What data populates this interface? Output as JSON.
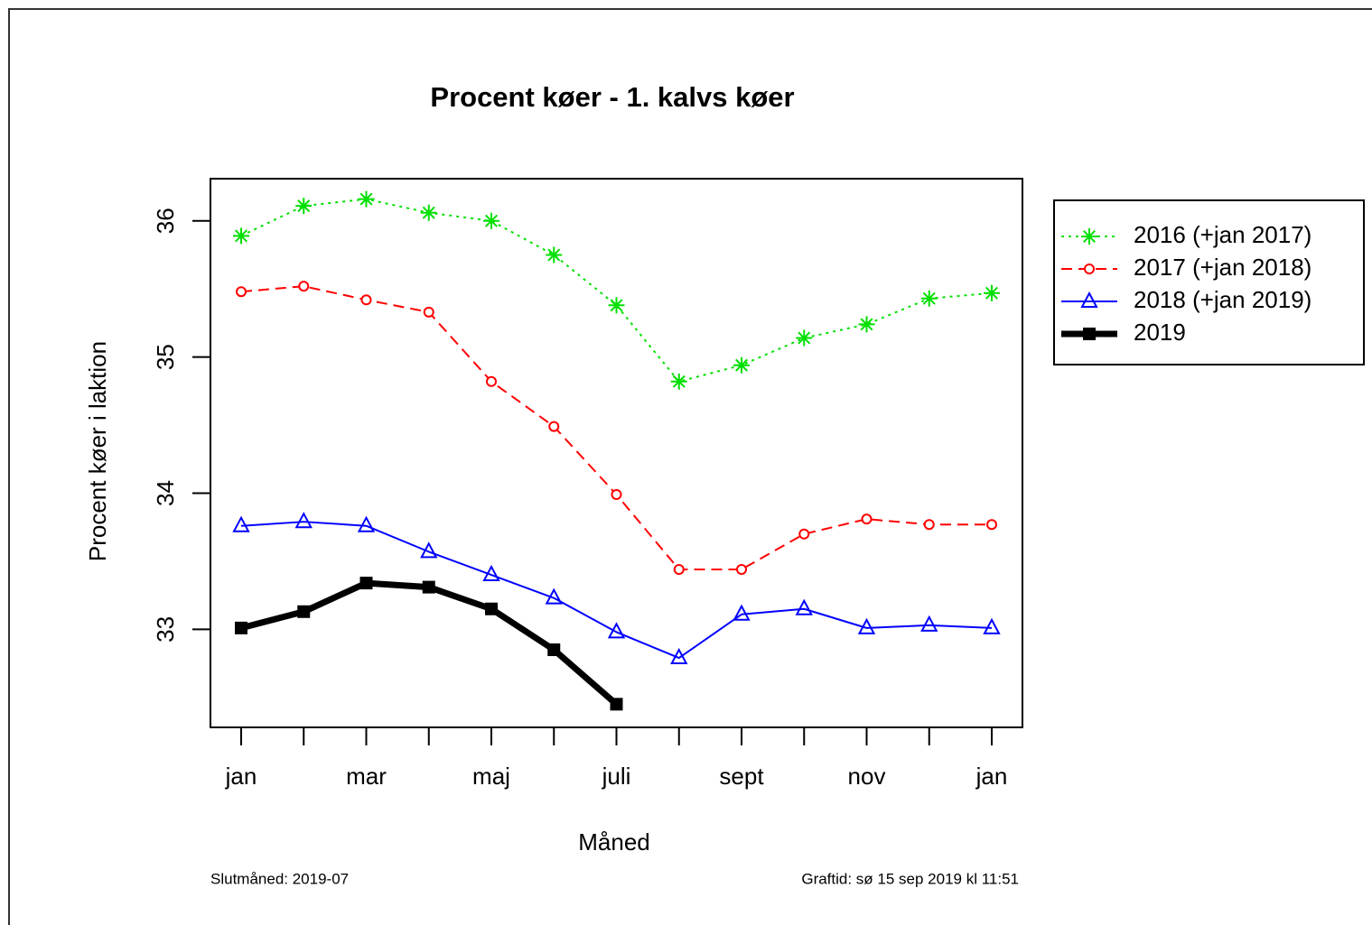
{
  "chart_data": {
    "type": "line",
    "title": "Procent køer - 1. kalvs køer",
    "x_label": "Måned",
    "y_label": "Procent køer i laktion",
    "footer_left": "Slutmåned: 2019-07",
    "footer_right": "Graftid: sø 15 sep 2019 kl 11:51",
    "categories": [
      "jan",
      null,
      "mar",
      null,
      "maj",
      null,
      "juli",
      null,
      "sept",
      null,
      "nov",
      null,
      "jan"
    ],
    "ylim": [
      32.28,
      36.31
    ],
    "yticks": [
      33,
      34,
      35,
      36
    ],
    "legend": "right",
    "series": [
      {
        "name": "2016 (+jan 2017)",
        "color": "#00e000",
        "line_style": "dotted",
        "marker": "asterisk",
        "values": [
          35.89,
          36.11,
          36.16,
          36.06,
          36.0,
          35.75,
          35.38,
          34.82,
          34.94,
          35.14,
          35.24,
          35.43,
          35.47
        ]
      },
      {
        "name": "2017 (+jan 2018)",
        "color": "#ff0000",
        "line_style": "dashed",
        "marker": "circle",
        "values": [
          35.48,
          35.52,
          35.42,
          35.33,
          34.82,
          34.49,
          33.99,
          33.44,
          33.44,
          33.7,
          33.81,
          33.77,
          33.77
        ]
      },
      {
        "name": "2018 (+jan 2019)",
        "color": "#0000ff",
        "line_style": "solid",
        "marker": "triangle",
        "values": [
          33.76,
          33.79,
          33.76,
          33.57,
          33.4,
          33.23,
          32.98,
          32.79,
          33.11,
          33.15,
          33.01,
          33.03,
          33.01
        ]
      },
      {
        "name": "2019",
        "color": "#000000",
        "line_style": "thick",
        "marker": "square",
        "values": [
          33.01,
          33.13,
          33.34,
          33.31,
          33.15,
          32.85,
          32.45,
          null,
          null,
          null,
          null,
          null,
          null
        ]
      }
    ]
  }
}
